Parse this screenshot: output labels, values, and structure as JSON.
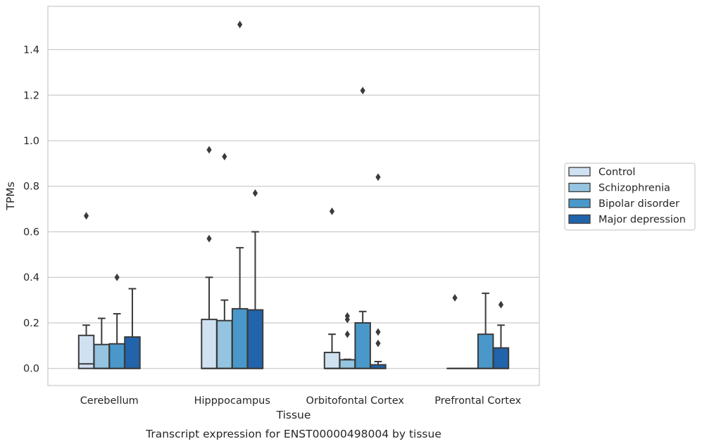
{
  "chart_data": {
    "type": "box",
    "caption": "Transcript expression for ENST00000498004 by tissue",
    "xlabel": "Tissue",
    "ylabel": "TPMs",
    "ylim": [
      -0.075,
      1.59
    ],
    "yticks": [
      0.0,
      0.2,
      0.4,
      0.6,
      0.8,
      1.0,
      1.2,
      1.4
    ],
    "ytick_labels": [
      "0.0",
      "0.2",
      "0.4",
      "0.6",
      "0.8",
      "1.0",
      "1.2",
      "1.4"
    ],
    "grid": "horizontal",
    "legend_position": "right",
    "categories": [
      "Cerebellum",
      "Hipppocampus",
      "Orbitofontal Cortex",
      "Prefrontal Cortex"
    ],
    "series": [
      {
        "name": "Control",
        "color": "#d0e1f2",
        "boxes": [
          {
            "q1": 0.0,
            "median": 0.02,
            "q3": 0.145,
            "whisker_low": 0.0,
            "whisker_high": 0.19,
            "outliers": [
              0.67
            ]
          },
          {
            "q1": 0.0,
            "median": 0.0,
            "q3": 0.215,
            "whisker_low": 0.0,
            "whisker_high": 0.4,
            "outliers": [
              0.57,
              0.96
            ]
          },
          {
            "q1": 0.0,
            "median": 0.0,
            "q3": 0.07,
            "whisker_low": 0.0,
            "whisker_high": 0.15,
            "outliers": [
              0.69
            ]
          },
          {
            "q1": 0.0,
            "median": 0.0,
            "q3": 0.0,
            "whisker_low": 0.0,
            "whisker_high": 0.0,
            "outliers": [
              0.31
            ]
          }
        ]
      },
      {
        "name": "Schizophrenia",
        "color": "#94c4df",
        "boxes": [
          {
            "q1": 0.0,
            "median": 0.0,
            "q3": 0.105,
            "whisker_low": 0.0,
            "whisker_high": 0.22,
            "outliers": []
          },
          {
            "q1": 0.0,
            "median": 0.0,
            "q3": 0.21,
            "whisker_low": 0.0,
            "whisker_high": 0.3,
            "outliers": [
              0.93
            ]
          },
          {
            "q1": 0.0,
            "median": 0.0,
            "q3": 0.038,
            "whisker_low": 0.0,
            "whisker_high": 0.04,
            "outliers": [
              0.15,
              0.215,
              0.23
            ]
          },
          {
            "q1": 0.0,
            "median": 0.0,
            "q3": 0.0,
            "whisker_low": 0.0,
            "whisker_high": 0.0,
            "outliers": []
          }
        ]
      },
      {
        "name": "Bipolar disorder",
        "color": "#4a98c9",
        "boxes": [
          {
            "q1": 0.0,
            "median": 0.0,
            "q3": 0.108,
            "whisker_low": 0.0,
            "whisker_high": 0.24,
            "outliers": [
              0.4
            ]
          },
          {
            "q1": 0.0,
            "median": 0.0,
            "q3": 0.262,
            "whisker_low": 0.0,
            "whisker_high": 0.53,
            "outliers": [
              1.51
            ]
          },
          {
            "q1": 0.0,
            "median": 0.0,
            "q3": 0.2,
            "whisker_low": 0.0,
            "whisker_high": 0.25,
            "outliers": [
              1.22
            ]
          },
          {
            "q1": 0.0,
            "median": 0.0,
            "q3": 0.15,
            "whisker_low": 0.0,
            "whisker_high": 0.33,
            "outliers": []
          }
        ]
      },
      {
        "name": "Major depression",
        "color": "#2164ab",
        "boxes": [
          {
            "q1": 0.0,
            "median": 0.0,
            "q3": 0.138,
            "whisker_low": 0.0,
            "whisker_high": 0.35,
            "outliers": []
          },
          {
            "q1": 0.0,
            "median": 0.0,
            "q3": 0.257,
            "whisker_low": 0.0,
            "whisker_high": 0.6,
            "outliers": [
              0.77
            ]
          },
          {
            "q1": 0.0,
            "median": 0.0,
            "q3": 0.016,
            "whisker_low": 0.0,
            "whisker_high": 0.03,
            "outliers": [
              0.11,
              0.16,
              0.84
            ]
          },
          {
            "q1": 0.0,
            "median": 0.0,
            "q3": 0.09,
            "whisker_low": 0.0,
            "whisker_high": 0.19,
            "outliers": [
              0.28
            ]
          }
        ]
      }
    ]
  }
}
